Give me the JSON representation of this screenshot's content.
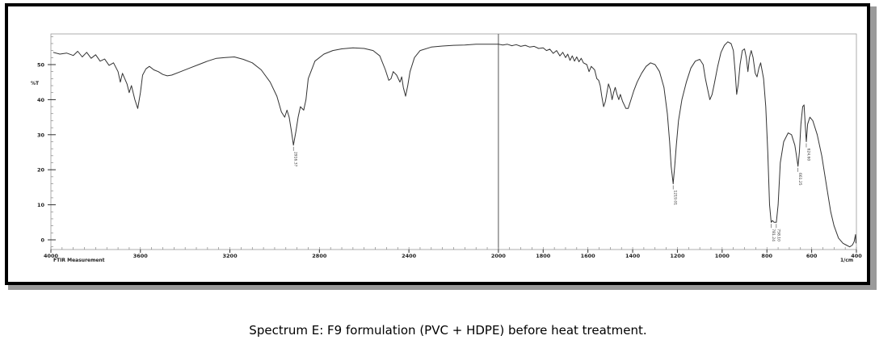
{
  "caption": "Spectrum E: F9 formulation (PVC + HDPE) before heat treatment.",
  "chart_data": {
    "type": "line",
    "title": "",
    "xlabel": "1/cm",
    "ylabel": "%T",
    "instrument_label": "FTIR Measurement",
    "xlim": [
      4000,
      400
    ],
    "ylim": [
      -3,
      60
    ],
    "x_ticks": [
      {
        "value": 4000,
        "label": "4000"
      },
      {
        "value": 3600,
        "label": "3600"
      },
      {
        "value": 3200,
        "label": "3200"
      },
      {
        "value": 2800,
        "label": "2800"
      },
      {
        "value": 2400,
        "label": "2400"
      },
      {
        "value": 2000,
        "label": "2000"
      },
      {
        "value": 1800,
        "label": "1800"
      },
      {
        "value": 1600,
        "label": "1600"
      },
      {
        "value": 1400,
        "label": "1400"
      },
      {
        "value": 1200,
        "label": "1200"
      },
      {
        "value": 1000,
        "label": "1000"
      },
      {
        "value": 800,
        "label": "800"
      },
      {
        "value": 600,
        "label": "600"
      },
      {
        "value": 400,
        "label": "400"
      }
    ],
    "y_ticks": [
      {
        "value": 50,
        "label": "50"
      },
      {
        "value": 40,
        "label": "40"
      },
      {
        "value": 30,
        "label": "30"
      },
      {
        "value": 20,
        "label": "20"
      },
      {
        "value": 10,
        "label": "10"
      },
      {
        "value": 0,
        "label": "0"
      }
    ],
    "peaks": [
      {
        "x": 2916,
        "y": 27,
        "label": "2916.37"
      },
      {
        "x": 1219,
        "y": 16,
        "label": "1219.01"
      },
      {
        "x": 781,
        "y": 5,
        "label": "781.24"
      },
      {
        "x": 758,
        "y": 5,
        "label": "758.10"
      },
      {
        "x": 661,
        "y": 21,
        "label": "661.25"
      },
      {
        "x": 624,
        "y": 28,
        "label": "624.60"
      }
    ],
    "series": [
      {
        "values": [
          [
            3990,
            53.5
          ],
          [
            3960,
            53.0
          ],
          [
            3930,
            53.3
          ],
          [
            3900,
            52.6
          ],
          [
            3880,
            53.8
          ],
          [
            3860,
            52.2
          ],
          [
            3840,
            53.5
          ],
          [
            3820,
            51.8
          ],
          [
            3800,
            52.8
          ],
          [
            3780,
            51.0
          ],
          [
            3760,
            51.6
          ],
          [
            3740,
            49.8
          ],
          [
            3720,
            50.5
          ],
          [
            3700,
            48.0
          ],
          [
            3690,
            45.0
          ],
          [
            3680,
            47.5
          ],
          [
            3660,
            44.5
          ],
          [
            3650,
            42.0
          ],
          [
            3640,
            44.0
          ],
          [
            3625,
            40.0
          ],
          [
            3612,
            37.5
          ],
          [
            3600,
            42.0
          ],
          [
            3590,
            47.0
          ],
          [
            3575,
            48.8
          ],
          [
            3560,
            49.5
          ],
          [
            3540,
            48.5
          ],
          [
            3520,
            48.0
          ],
          [
            3500,
            47.2
          ],
          [
            3480,
            46.8
          ],
          [
            3460,
            47.0
          ],
          [
            3420,
            48.0
          ],
          [
            3380,
            49.0
          ],
          [
            3340,
            50.0
          ],
          [
            3300,
            51.0
          ],
          [
            3260,
            51.8
          ],
          [
            3220,
            52.0
          ],
          [
            3180,
            52.2
          ],
          [
            3140,
            51.5
          ],
          [
            3100,
            50.5
          ],
          [
            3060,
            48.5
          ],
          [
            3020,
            45.0
          ],
          [
            2990,
            41.0
          ],
          [
            2970,
            36.5
          ],
          [
            2955,
            35.0
          ],
          [
            2945,
            37.0
          ],
          [
            2935,
            35.0
          ],
          [
            2925,
            31.0
          ],
          [
            2916,
            27.0
          ],
          [
            2905,
            31.0
          ],
          [
            2895,
            35.0
          ],
          [
            2885,
            38.0
          ],
          [
            2870,
            37.0
          ],
          [
            2860,
            40.0
          ],
          [
            2850,
            46.0
          ],
          [
            2820,
            51.0
          ],
          [
            2780,
            53.0
          ],
          [
            2740,
            54.0
          ],
          [
            2700,
            54.5
          ],
          [
            2650,
            54.8
          ],
          [
            2600,
            54.6
          ],
          [
            2560,
            54.0
          ],
          [
            2530,
            52.5
          ],
          [
            2505,
            48.5
          ],
          [
            2490,
            45.5
          ],
          [
            2480,
            46.0
          ],
          [
            2470,
            48.0
          ],
          [
            2455,
            47.0
          ],
          [
            2440,
            45.0
          ],
          [
            2432,
            46.5
          ],
          [
            2425,
            43.5
          ],
          [
            2415,
            41.0
          ],
          [
            2405,
            44.0
          ],
          [
            2395,
            48.0
          ],
          [
            2375,
            52.0
          ],
          [
            2350,
            54.0
          ],
          [
            2300,
            55.0
          ],
          [
            2250,
            55.3
          ],
          [
            2200,
            55.5
          ],
          [
            2150,
            55.6
          ],
          [
            2100,
            55.8
          ],
          [
            2050,
            55.8
          ],
          [
            2000,
            55.8
          ],
          [
            1980,
            55.6
          ],
          [
            1960,
            55.8
          ],
          [
            1940,
            55.4
          ],
          [
            1920,
            55.7
          ],
          [
            1900,
            55.2
          ],
          [
            1880,
            55.5
          ],
          [
            1860,
            55.0
          ],
          [
            1840,
            55.2
          ],
          [
            1820,
            54.6
          ],
          [
            1800,
            54.8
          ],
          [
            1785,
            54.0
          ],
          [
            1770,
            54.4
          ],
          [
            1755,
            53.2
          ],
          [
            1740,
            54.0
          ],
          [
            1725,
            52.5
          ],
          [
            1712,
            53.5
          ],
          [
            1700,
            52.0
          ],
          [
            1690,
            53.0
          ],
          [
            1680,
            51.2
          ],
          [
            1670,
            52.5
          ],
          [
            1660,
            51.0
          ],
          [
            1650,
            52.2
          ],
          [
            1640,
            50.8
          ],
          [
            1630,
            51.8
          ],
          [
            1620,
            50.5
          ],
          [
            1605,
            50.0
          ],
          [
            1595,
            48.0
          ],
          [
            1585,
            49.5
          ],
          [
            1570,
            48.5
          ],
          [
            1560,
            46.0
          ],
          [
            1552,
            45.5
          ],
          [
            1545,
            44.0
          ],
          [
            1538,
            41.0
          ],
          [
            1530,
            38.0
          ],
          [
            1522,
            39.5
          ],
          [
            1515,
            42.0
          ],
          [
            1508,
            44.5
          ],
          [
            1500,
            43.0
          ],
          [
            1492,
            40.0
          ],
          [
            1485,
            42.0
          ],
          [
            1478,
            43.5
          ],
          [
            1470,
            41.5
          ],
          [
            1462,
            40.0
          ],
          [
            1455,
            41.5
          ],
          [
            1445,
            39.5
          ],
          [
            1430,
            37.5
          ],
          [
            1420,
            37.5
          ],
          [
            1410,
            39.5
          ],
          [
            1395,
            42.5
          ],
          [
            1380,
            45.0
          ],
          [
            1360,
            47.5
          ],
          [
            1340,
            49.5
          ],
          [
            1320,
            50.5
          ],
          [
            1300,
            50.0
          ],
          [
            1280,
            48.0
          ],
          [
            1260,
            43.5
          ],
          [
            1245,
            36.0
          ],
          [
            1235,
            28.0
          ],
          [
            1228,
            21.0
          ],
          [
            1219,
            16.0
          ],
          [
            1212,
            21.0
          ],
          [
            1205,
            27.0
          ],
          [
            1195,
            34.0
          ],
          [
            1180,
            40.0
          ],
          [
            1160,
            45.0
          ],
          [
            1140,
            49.0
          ],
          [
            1120,
            51.0
          ],
          [
            1100,
            51.5
          ],
          [
            1085,
            50.0
          ],
          [
            1075,
            46.0
          ],
          [
            1065,
            43.0
          ],
          [
            1055,
            40.0
          ],
          [
            1045,
            41.5
          ],
          [
            1035,
            44.5
          ],
          [
            1020,
            49.5
          ],
          [
            1005,
            53.5
          ],
          [
            990,
            55.5
          ],
          [
            975,
            56.5
          ],
          [
            960,
            56.0
          ],
          [
            950,
            54.0
          ],
          [
            942,
            48.0
          ],
          [
            935,
            41.5
          ],
          [
            928,
            44.5
          ],
          [
            920,
            50.0
          ],
          [
            910,
            54.0
          ],
          [
            900,
            54.5
          ],
          [
            892,
            52.0
          ],
          [
            885,
            48.0
          ],
          [
            878,
            52.0
          ],
          [
            870,
            54.0
          ],
          [
            862,
            52.0
          ],
          [
            852,
            47.5
          ],
          [
            844,
            46.5
          ],
          [
            836,
            49.0
          ],
          [
            828,
            50.5
          ],
          [
            815,
            46.0
          ],
          [
            805,
            38.0
          ],
          [
            796,
            25.0
          ],
          [
            788,
            10.0
          ],
          [
            781,
            5.0
          ],
          [
            775,
            5.5
          ],
          [
            768,
            5.0
          ],
          [
            758,
            5.0
          ],
          [
            750,
            10.0
          ],
          [
            740,
            22.0
          ],
          [
            725,
            28.0
          ],
          [
            705,
            30.5
          ],
          [
            690,
            30.0
          ],
          [
            675,
            27.0
          ],
          [
            668,
            24.0
          ],
          [
            661,
            21.0
          ],
          [
            655,
            25.0
          ],
          [
            648,
            33.0
          ],
          [
            640,
            38.0
          ],
          [
            634,
            38.5
          ],
          [
            628,
            32.0
          ],
          [
            624,
            28.0
          ],
          [
            618,
            33.0
          ],
          [
            608,
            35.0
          ],
          [
            595,
            34.0
          ],
          [
            575,
            30.0
          ],
          [
            555,
            24.0
          ],
          [
            535,
            16.0
          ],
          [
            515,
            8.0
          ],
          [
            500,
            4.0
          ],
          [
            480,
            0.5
          ],
          [
            460,
            -1.0
          ],
          [
            445,
            -1.5
          ],
          [
            430,
            -2.0
          ],
          [
            418,
            -1.5
          ],
          [
            410,
            -0.5
          ],
          [
            404,
            1.5
          ],
          [
            402,
            -1.0
          ]
        ]
      }
    ]
  }
}
